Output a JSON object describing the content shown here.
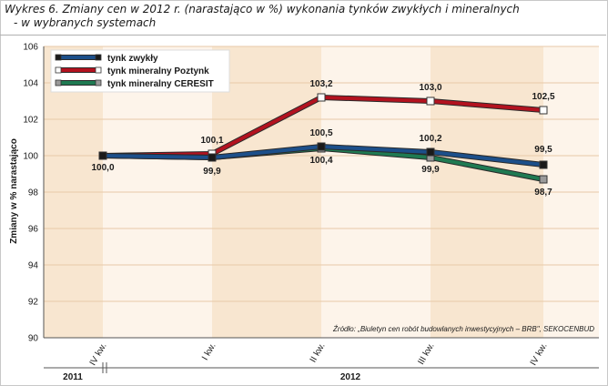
{
  "title": {
    "line1": "Wykres 6. Zmiany cen w 2012 r. (narastająco w %) wykonania tynków zwykłych i mineralnych",
    "line2": "- w wybranych systemach"
  },
  "source": "Źródło: „Biuletyn cen robót budowlanych inwestycyjnych – BRB\", SEKOCENBUD",
  "years": [
    "2011",
    "2012"
  ],
  "colors": {
    "band_dark": "#f8e6d0",
    "band_light": "#fdf4ea",
    "grid": "#e8c9a8"
  },
  "chart_data": {
    "type": "line",
    "categories": [
      "IV kw.",
      "I kw.",
      "II kw.",
      "III kw.",
      "IV kw."
    ],
    "ylabel": "Zmiany w % narastająco",
    "ylim": [
      90,
      106
    ],
    "yticks": [
      "90",
      "92",
      "94",
      "96",
      "98",
      "100",
      "102",
      "104",
      "106"
    ],
    "grid": true,
    "legend_position": "top-left",
    "series": [
      {
        "name": "tynk zwykły",
        "color": "#1c4f8a",
        "marker": "#1a1a1a",
        "values": [
          100.0,
          99.9,
          100.5,
          100.2,
          99.5
        ],
        "labels": [
          "",
          "",
          "100,5",
          "100,2",
          "99,5"
        ]
      },
      {
        "name": "tynk mineralny Poztynk",
        "color": "#b3121f",
        "marker": "#ffffff",
        "values": [
          100.0,
          100.1,
          103.2,
          103.0,
          102.5
        ],
        "labels": [
          "",
          "100,1",
          "103,2",
          "103,0",
          "102,5"
        ]
      },
      {
        "name": "tynk mineralny CERESIT",
        "color": "#1f7a52",
        "marker": "#9a9a9a",
        "values": [
          100.0,
          99.9,
          100.4,
          99.9,
          98.7
        ],
        "labels": [
          "100,0",
          "99,9",
          "100,4",
          "99,9",
          "98,7"
        ]
      }
    ]
  }
}
